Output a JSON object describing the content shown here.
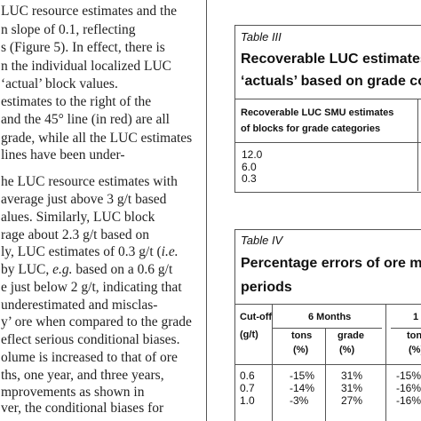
{
  "body_text": {
    "lines": [
      "LUC resource estimates and the",
      "n slope of 0.1, reflecting",
      "s (Figure 5). In effect, there is",
      "n the individual localized LUC",
      "‘actual’ block values.",
      "estimates to the right of the",
      "and the 45° line (in red) are all",
      "grade, while all the LUC estimates",
      "lines have been under-",
      "he LUC resource estimates with",
      "average just above 3 g/t based",
      "alues. Similarly, LUC block",
      "rage about 2.3 g/t based on",
      [
        "ly, LUC estimates of 0.3 g/t (",
        "i.e."
      ],
      [
        "by LUC, ",
        "e.g.",
        " based on a 0.6 g/t"
      ],
      "e just below 2 g/t, indicating that",
      "underestimated and misclas-",
      "y’ ore when compared to the grade",
      "eflect serious conditional biases.",
      "olume is increased to that of ore",
      "ths, one year, and three years,",
      "mprovements as shown in",
      "ver, the conditional biases for"
    ]
  },
  "table_iii": {
    "label": "Table III",
    "title": [
      "Recoverable LUC estimates",
      "‘actuals’ based on grade co"
    ],
    "header": [
      "Recoverable LUC SMU estimates",
      "of blocks for grade categories"
    ],
    "rows": [
      "12.0",
      "6.0",
      "0.3"
    ]
  },
  "table_iv": {
    "label": "Table IV",
    "title": [
      "Percentage errors of ore mi",
      "periods"
    ],
    "header": {
      "cutoff": [
        "Cut-off",
        "(g/t)"
      ],
      "group1": "6 Months",
      "group2": "1",
      "sub": [
        [
          "tons",
          "(%)"
        ],
        [
          "grade",
          "(%)"
        ],
        [
          "tons",
          "(%)"
        ]
      ]
    },
    "rows": [
      [
        "0.6",
        "-15%",
        "31%",
        "-15%"
      ],
      [
        "0.7",
        "-14%",
        "31%",
        "-16%"
      ],
      [
        "1.0",
        "-3%",
        "27%",
        "-16%"
      ]
    ]
  }
}
